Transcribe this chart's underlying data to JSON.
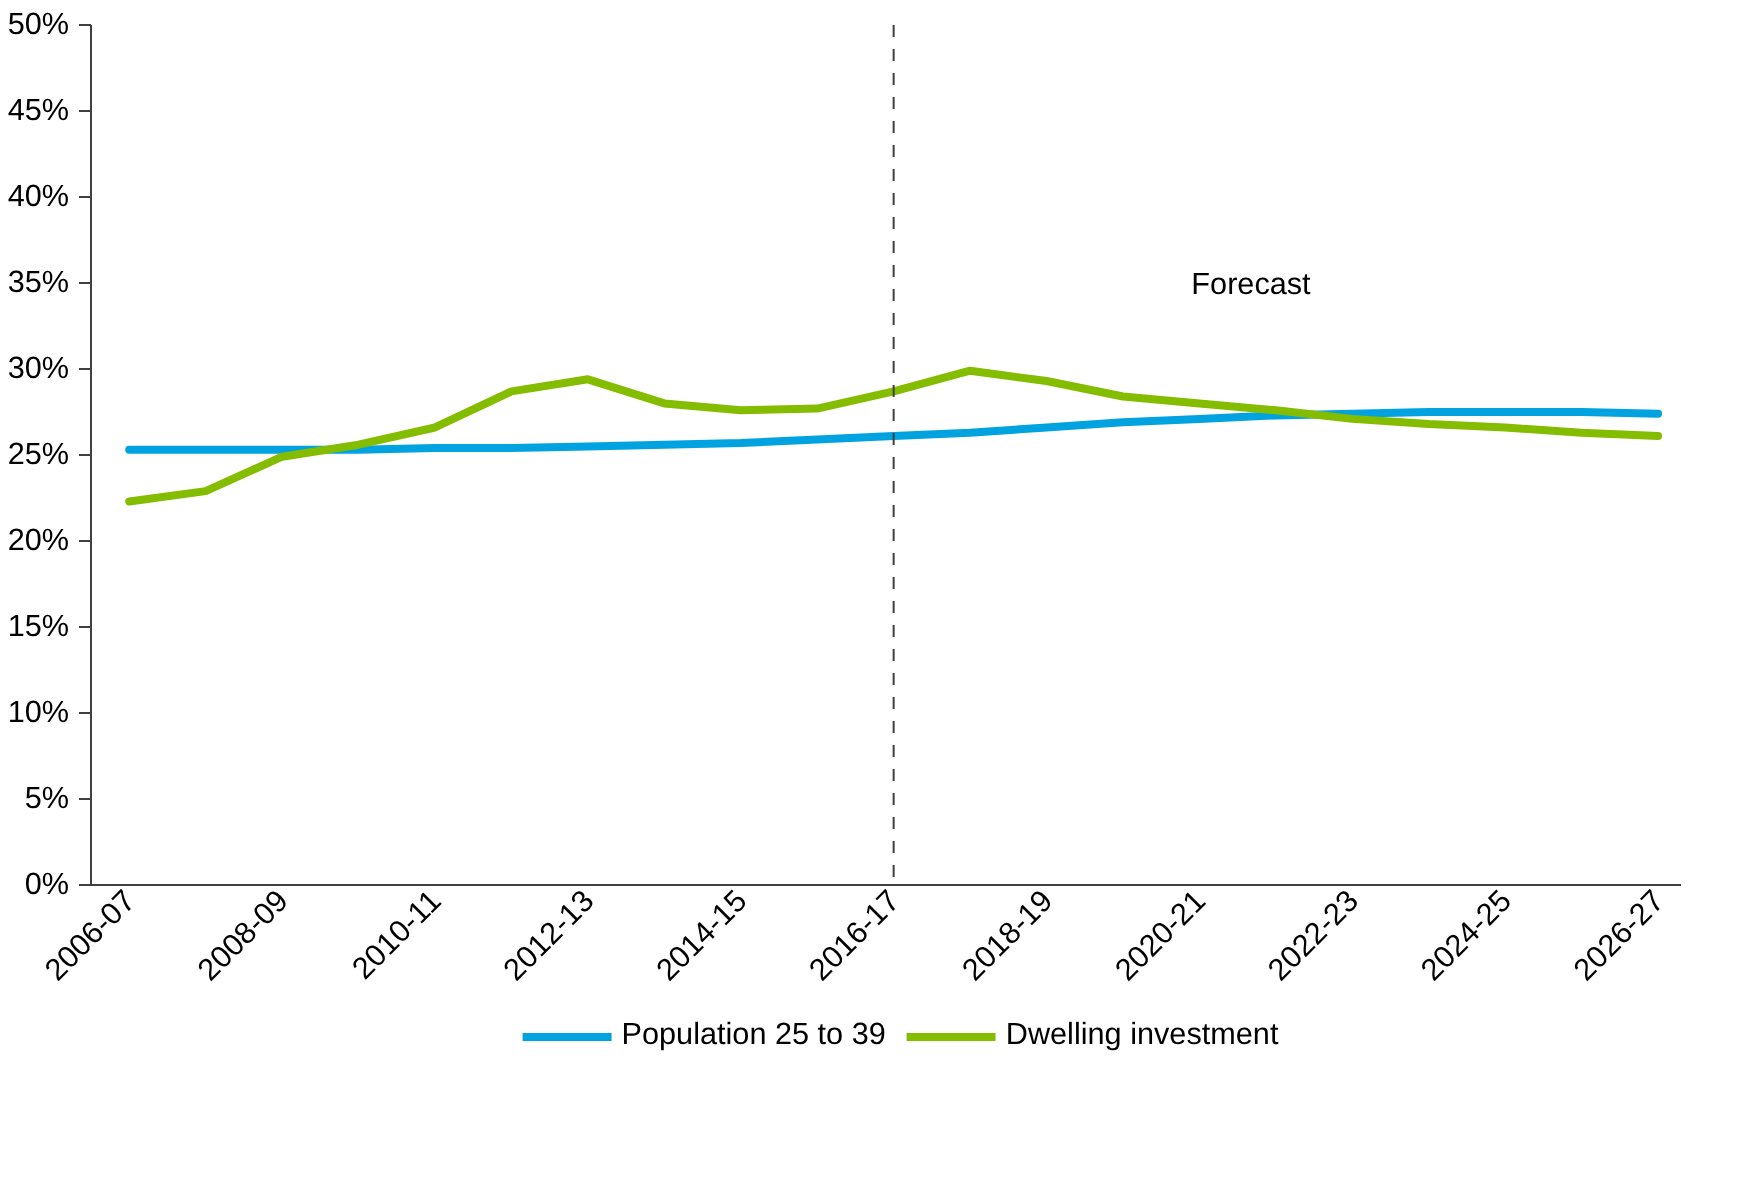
{
  "chart_data": {
    "type": "line",
    "categories": [
      "2006-07",
      null,
      "2008-09",
      null,
      "2010-11",
      null,
      "2012-13",
      null,
      "2014-15",
      null,
      "2016-17",
      null,
      "2018-19",
      null,
      "2020-21",
      null,
      "2022-23",
      null,
      "2024-25",
      null,
      "2026-27"
    ],
    "series": [
      {
        "name": "Population 25 to 39",
        "color": "#00a3e0",
        "values": [
          25.3,
          25.3,
          25.3,
          25.3,
          25.4,
          25.4,
          25.5,
          25.6,
          25.7,
          25.9,
          26.1,
          26.3,
          26.6,
          26.9,
          27.1,
          27.3,
          27.4,
          27.5,
          27.5,
          27.5,
          27.4
        ]
      },
      {
        "name": "Dwelling investment",
        "color": "#84bd00",
        "values": [
          22.3,
          22.9,
          24.9,
          25.6,
          26.6,
          28.7,
          29.4,
          28.0,
          27.6,
          27.7,
          28.7,
          29.9,
          29.3,
          28.4,
          28.0,
          27.6,
          27.1,
          26.8,
          26.6,
          26.3,
          26.1
        ]
      }
    ],
    "ylim": [
      0,
      50
    ],
    "yticks": [
      {
        "value": 0,
        "label": "0%"
      },
      {
        "value": 5,
        "label": "5%"
      },
      {
        "value": 10,
        "label": "10%"
      },
      {
        "value": 15,
        "label": "15%"
      },
      {
        "value": 20,
        "label": "20%"
      },
      {
        "value": 25,
        "label": "25%"
      },
      {
        "value": 30,
        "label": "30%"
      },
      {
        "value": 35,
        "label": "35%"
      },
      {
        "value": 40,
        "label": "40%"
      },
      {
        "value": 45,
        "label": "45%"
      },
      {
        "value": 50,
        "label": "50%"
      }
    ],
    "ref_lines": [
      {
        "axis": "x",
        "value": "2016-17",
        "color": "#404040",
        "line_style": "dashed"
      }
    ],
    "annotations": [
      "Forecast"
    ],
    "grid": false,
    "legend": "bottom",
    "marker": "none",
    "line_style": "solid"
  }
}
